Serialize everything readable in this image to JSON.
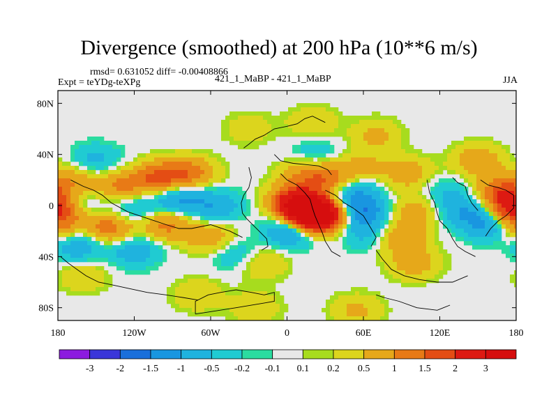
{
  "chart_data": {
    "type": "heatmap",
    "title": "Divergence (smoothed) at 200 hPa (10**6 m/s)",
    "stats": "rmsd= 0.631052 diff= -0.00408866",
    "experiment": "Expt = teYDg-teXPg",
    "subtitle": "421_1_MaBP - 421_1_MaBP",
    "season": "JJA",
    "x_ticks": [
      "180",
      "120W",
      "60W",
      "0",
      "60E",
      "120E",
      "180"
    ],
    "x_tick_values": [
      -180,
      -120,
      -60,
      0,
      60,
      120,
      180
    ],
    "y_ticks": [
      "80N",
      "40N",
      "0",
      "40S",
      "80S"
    ],
    "y_tick_values": [
      80,
      40,
      0,
      -40,
      -80
    ],
    "xlim": [
      -180,
      180
    ],
    "ylim": [
      -90,
      90
    ],
    "colorbar_levels": [
      "-3",
      "-2",
      "-1.5",
      "-1",
      "-0.5",
      "-0.2",
      "-0.1",
      "0.1",
      "0.2",
      "0.5",
      "1",
      "1.5",
      "2",
      "3"
    ],
    "colorbar_colors": [
      "#8c1bdf",
      "#3a36d9",
      "#1a6fdb",
      "#1996e0",
      "#1fb3de",
      "#20cbd2",
      "#2bdca0",
      "#e8e8e8",
      "#a7dc1e",
      "#dcd51d",
      "#e6a81a",
      "#e87a16",
      "#e44d14",
      "#dd1a12",
      "#d60e0e"
    ],
    "field_blobs": [
      {
        "lon": -165,
        "lat": 20,
        "value": 0.8
      },
      {
        "lon": -130,
        "lat": 15,
        "value": 1.1
      },
      {
        "lon": -100,
        "lat": 22,
        "value": 1.6
      },
      {
        "lon": -75,
        "lat": 25,
        "value": 1.2
      },
      {
        "lon": -165,
        "lat": 2,
        "value": -0.6
      },
      {
        "lon": -120,
        "lat": -2,
        "value": -0.7
      },
      {
        "lon": -85,
        "lat": 5,
        "value": -1.2
      },
      {
        "lon": -55,
        "lat": 0,
        "value": -0.9
      },
      {
        "lon": -175,
        "lat": -22,
        "value": 0.9
      },
      {
        "lon": -140,
        "lat": -18,
        "value": 1.4
      },
      {
        "lon": -95,
        "lat": -15,
        "value": 1.2
      },
      {
        "lon": -60,
        "lat": -25,
        "value": 0.9
      },
      {
        "lon": -165,
        "lat": -30,
        "value": -1.3
      },
      {
        "lon": -120,
        "lat": -35,
        "value": -0.9
      },
      {
        "lon": -40,
        "lat": -38,
        "value": -0.6
      },
      {
        "lon": -150,
        "lat": 35,
        "value": -0.7
      },
      {
        "lon": -160,
        "lat": -55,
        "value": 0.5
      },
      {
        "lon": 5,
        "lat": 5,
        "value": 1.3
      },
      {
        "lon": 12,
        "lat": -2,
        "value": 2.4
      },
      {
        "lon": 20,
        "lat": -10,
        "value": 3.2
      },
      {
        "lon": 30,
        "lat": -5,
        "value": 2.0
      },
      {
        "lon": 5,
        "lat": -18,
        "value": -1.8
      },
      {
        "lon": 15,
        "lat": 25,
        "value": 0.9
      },
      {
        "lon": 22,
        "lat": 40,
        "value": -0.5
      },
      {
        "lon": 35,
        "lat": 20,
        "value": 1.2
      },
      {
        "lon": 40,
        "lat": 5,
        "value": -0.8
      },
      {
        "lon": 55,
        "lat": 12,
        "value": -0.7
      },
      {
        "lon": 60,
        "lat": -5,
        "value": -1.4
      },
      {
        "lon": 60,
        "lat": -22,
        "value": -0.6
      },
      {
        "lon": 60,
        "lat": 30,
        "value": 0.6
      },
      {
        "lon": 70,
        "lat": 55,
        "value": 0.6
      },
      {
        "lon": 95,
        "lat": 25,
        "value": 0.8
      },
      {
        "lon": 100,
        "lat": -5,
        "value": 0.8
      },
      {
        "lon": 125,
        "lat": 10,
        "value": -0.5
      },
      {
        "lon": 140,
        "lat": -5,
        "value": -0.9
      },
      {
        "lon": 160,
        "lat": -15,
        "value": -1.2
      },
      {
        "lon": 170,
        "lat": 10,
        "value": 1.7
      },
      {
        "lon": 178,
        "lat": -5,
        "value": 2.2
      },
      {
        "lon": 150,
        "lat": 35,
        "value": 0.9
      },
      {
        "lon": 90,
        "lat": -25,
        "value": 0.9
      },
      {
        "lon": 100,
        "lat": -45,
        "value": 0.8
      },
      {
        "lon": -20,
        "lat": -45,
        "value": 0.6
      },
      {
        "lon": -70,
        "lat": -70,
        "value": 0.5
      },
      {
        "lon": -25,
        "lat": -80,
        "value": 0.5
      },
      {
        "lon": 55,
        "lat": -82,
        "value": 0.6
      },
      {
        "lon": 20,
        "lat": 65,
        "value": 0.5
      },
      {
        "lon": -30,
        "lat": 60,
        "value": 0.4
      }
    ],
    "coastline_segments": [
      [
        [
          -170,
          20
        ],
        [
          -160,
          15
        ],
        [
          -152,
          12
        ],
        [
          -145,
          8
        ],
        [
          -138,
          2
        ],
        [
          -125,
          -5
        ],
        [
          -110,
          -10
        ],
        [
          -95,
          -15
        ],
        [
          -85,
          -18
        ],
        [
          -75,
          -18
        ],
        [
          -60,
          -15
        ],
        [
          -45,
          -20
        ],
        [
          -35,
          -25
        ]
      ],
      [
        [
          -178,
          -40
        ],
        [
          -172,
          -45
        ],
        [
          -165,
          -50
        ],
        [
          -158,
          -55
        ],
        [
          -148,
          -60
        ],
        [
          -138,
          -62
        ],
        [
          -124,
          -65
        ],
        [
          -110,
          -68
        ],
        [
          -95,
          -70
        ],
        [
          -82,
          -72
        ],
        [
          -70,
          -74
        ]
      ],
      [
        [
          -72,
          -85
        ],
        [
          -72,
          -75
        ],
        [
          -62,
          -70
        ],
        [
          -52,
          -68
        ],
        [
          -40,
          -66
        ],
        [
          -28,
          -68
        ],
        [
          -18,
          -70
        ],
        [
          -10,
          -68
        ],
        [
          -10,
          -75
        ],
        [
          -40,
          -80
        ],
        [
          -72,
          -85
        ]
      ],
      [
        [
          -30,
          30
        ],
        [
          -28,
          22
        ],
        [
          -30,
          14
        ],
        [
          -34,
          8
        ],
        [
          -36,
          2
        ],
        [
          -35,
          -6
        ],
        [
          -32,
          -10
        ],
        [
          -28,
          -14
        ],
        [
          -22,
          -20
        ],
        [
          -16,
          -26
        ],
        [
          -15,
          -32
        ],
        [
          -20,
          -35
        ]
      ],
      [
        [
          -34,
          45
        ],
        [
          -30,
          48
        ],
        [
          -25,
          52
        ],
        [
          -18,
          55
        ],
        [
          -10,
          60
        ],
        [
          0,
          62
        ],
        [
          8,
          64
        ],
        [
          14,
          68
        ],
        [
          20,
          70
        ],
        [
          30,
          65
        ]
      ],
      [
        [
          -10,
          40
        ],
        [
          -5,
          35
        ],
        [
          5,
          33
        ],
        [
          15,
          32
        ],
        [
          25,
          31
        ],
        [
          32,
          28
        ],
        [
          35,
          24
        ]
      ],
      [
        [
          -5,
          25
        ],
        [
          0,
          20
        ],
        [
          8,
          16
        ],
        [
          14,
          10
        ],
        [
          18,
          5
        ],
        [
          20,
          -2
        ],
        [
          22,
          -8
        ],
        [
          25,
          -15
        ],
        [
          28,
          -22
        ],
        [
          30,
          -28
        ],
        [
          35,
          -36
        ],
        [
          42,
          -40
        ]
      ],
      [
        [
          30,
          12
        ],
        [
          38,
          8
        ],
        [
          45,
          2
        ],
        [
          52,
          -2
        ],
        [
          60,
          -8
        ],
        [
          66,
          -18
        ],
        [
          70,
          -25
        ],
        [
          66,
          -32
        ]
      ],
      [
        [
          70,
          -35
        ],
        [
          75,
          -42
        ],
        [
          82,
          -50
        ],
        [
          92,
          -55
        ],
        [
          104,
          -58
        ],
        [
          118,
          -60
        ],
        [
          130,
          -60
        ],
        [
          142,
          -55
        ]
      ],
      [
        [
          70,
          -70
        ],
        [
          76,
          -72
        ],
        [
          88,
          -75
        ],
        [
          102,
          -80
        ],
        [
          118,
          -82
        ],
        [
          128,
          -78
        ]
      ],
      [
        [
          110,
          20
        ],
        [
          112,
          10
        ],
        [
          116,
          2
        ],
        [
          118,
          -6
        ],
        [
          120,
          -12
        ],
        [
          126,
          -18
        ],
        [
          130,
          -26
        ],
        [
          134,
          -32
        ],
        [
          140,
          -36
        ],
        [
          148,
          -40
        ]
      ],
      [
        [
          130,
          22
        ],
        [
          134,
          18
        ],
        [
          140,
          15
        ],
        [
          142,
          8
        ],
        [
          145,
          2
        ],
        [
          150,
          -4
        ]
      ],
      [
        [
          152,
          20
        ],
        [
          158,
          16
        ],
        [
          166,
          14
        ],
        [
          172,
          12
        ],
        [
          178,
          8
        ],
        [
          178,
          -2
        ],
        [
          172,
          -8
        ],
        [
          166,
          -12
        ],
        [
          160,
          -18
        ],
        [
          156,
          -24
        ]
      ]
    ]
  }
}
